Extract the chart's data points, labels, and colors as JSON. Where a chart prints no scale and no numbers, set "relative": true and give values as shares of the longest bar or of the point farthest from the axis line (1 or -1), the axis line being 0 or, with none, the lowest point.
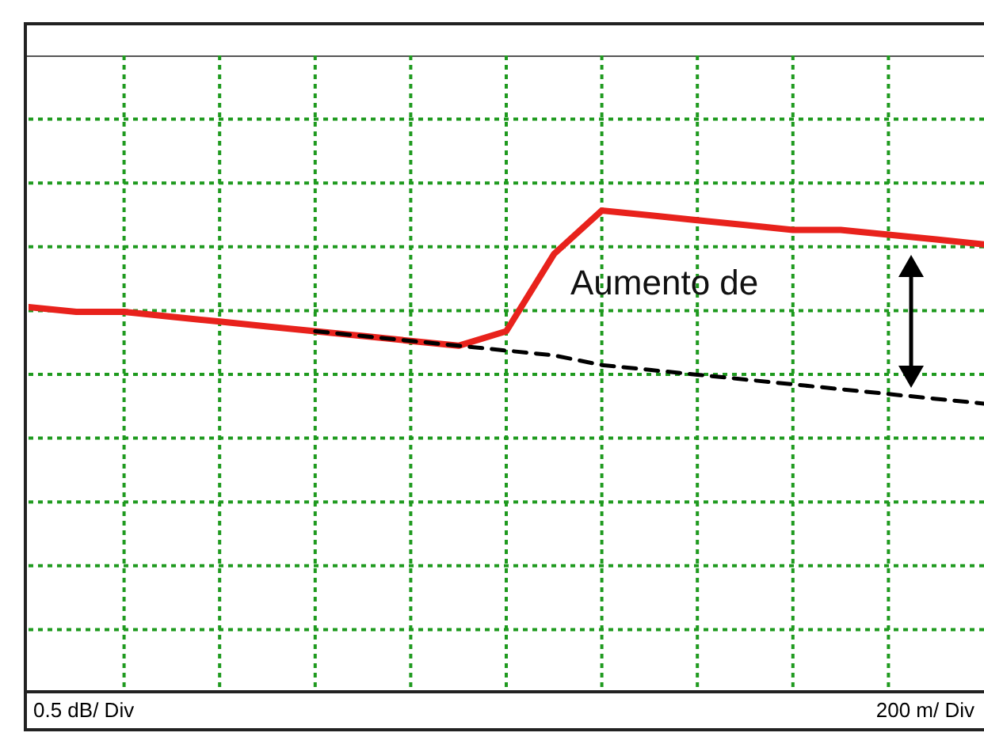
{
  "chart_data": {
    "type": "line",
    "relative": true,
    "grid": true,
    "legend": false,
    "marker": "none",
    "categories": [
      null,
      null,
      null,
      null,
      null,
      null,
      null,
      null,
      null,
      null,
      null,
      null,
      null,
      null,
      null,
      null,
      null,
      null,
      null,
      null,
      null
    ],
    "series": [
      {
        "color": "#e8221c",
        "line_style": "solid",
        "values": [
          0.8,
          0.79,
          0.79,
          0.78,
          0.77,
          0.76,
          0.75,
          0.74,
          0.73,
          0.72,
          0.75,
          0.91,
          1,
          0.99,
          0.98,
          0.97,
          0.96,
          0.96,
          0.95,
          0.94,
          0.93
        ]
      },
      {
        "color": "#000000",
        "line_style": "dashed",
        "values": [
          null,
          null,
          null,
          null,
          null,
          null,
          0.75,
          0.74,
          0.73,
          0.72,
          0.71,
          0.7,
          0.68,
          0.67,
          0.66,
          0.65,
          0.64,
          0.63,
          0.62,
          0.61,
          0.6
        ]
      }
    ],
    "annotations": [
      "Aumento de",
      "0.5 dB/ Div",
      "200 m/ Div"
    ]
  }
}
